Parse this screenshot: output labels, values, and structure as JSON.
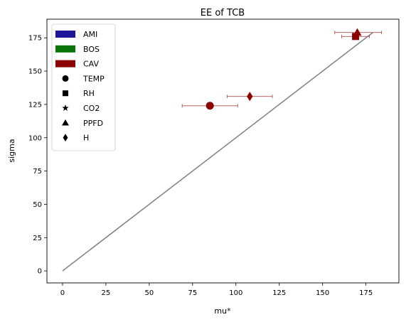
{
  "chart_data": {
    "type": "scatter",
    "title": "EE of TCB",
    "xlabel": "mu*",
    "ylabel": "sigma",
    "xlim": [
      -9,
      194
    ],
    "ylim": [
      -9,
      189
    ],
    "xticks": [
      0,
      25,
      50,
      75,
      100,
      125,
      150,
      175
    ],
    "yticks": [
      0,
      25,
      50,
      75,
      100,
      125,
      150,
      175
    ],
    "grid": false,
    "legend_position": "top-left",
    "legend": {
      "sites": [
        {
          "label": "AMI",
          "color": "#1f1599"
        },
        {
          "label": "BOS",
          "color": "#0a740a"
        },
        {
          "label": "CAV",
          "color": "#8b0000"
        }
      ],
      "variables": [
        {
          "label": "TEMP",
          "marker": "circle"
        },
        {
          "label": "RH",
          "marker": "square"
        },
        {
          "label": "CO2",
          "marker": "star"
        },
        {
          "label": "PPFD",
          "marker": "triangle"
        },
        {
          "label": "H",
          "marker": "diamond"
        }
      ]
    },
    "reference_line": {
      "x": [
        0,
        179
      ],
      "y": [
        0,
        179
      ],
      "color": "#808080"
    },
    "points": [
      {
        "site": "CAV",
        "variable": "TEMP",
        "marker": "circle",
        "x": 85,
        "y": 124,
        "xerr_low": 69,
        "xerr_high": 101
      },
      {
        "site": "CAV",
        "variable": "H",
        "marker": "diamond",
        "x": 108,
        "y": 131,
        "xerr_low": 95,
        "xerr_high": 121
      },
      {
        "site": "CAV",
        "variable": "PPFD",
        "marker": "triangle",
        "x": 170,
        "y": 179,
        "xerr_low": 157,
        "xerr_high": 184
      },
      {
        "site": "CAV",
        "variable": "RH",
        "marker": "square",
        "x": 169,
        "y": 176,
        "xerr_low": 161,
        "xerr_high": 177
      }
    ]
  }
}
